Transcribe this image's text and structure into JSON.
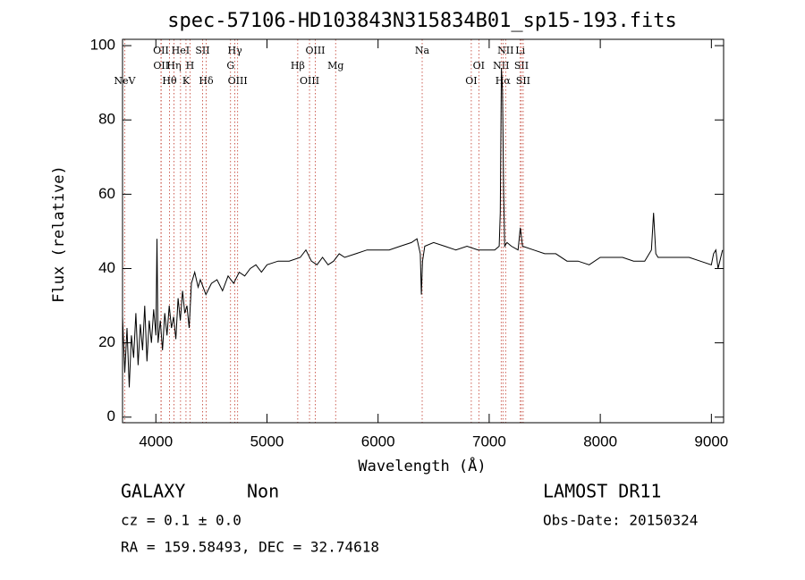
{
  "chart_data": {
    "type": "line",
    "title": "spec-57106-HD103843N315834B01_sp15-193.fits",
    "x_label": "Wavelength (Å)",
    "y_label": "Flux (relative)",
    "x": [
      3700,
      3720,
      3740,
      3760,
      3780,
      3800,
      3820,
      3840,
      3860,
      3880,
      3900,
      3920,
      3940,
      3960,
      3980,
      4000,
      4010,
      4020,
      4040,
      4060,
      4080,
      4100,
      4120,
      4140,
      4160,
      4180,
      4200,
      4220,
      4240,
      4260,
      4280,
      4300,
      4320,
      4350,
      4380,
      4400,
      4450,
      4500,
      4550,
      4600,
      4650,
      4700,
      4750,
      4800,
      4850,
      4900,
      4950,
      5000,
      5100,
      5200,
      5300,
      5350,
      5400,
      5450,
      5500,
      5550,
      5600,
      5650,
      5700,
      5800,
      5900,
      6000,
      6100,
      6200,
      6300,
      6350,
      6380,
      6390,
      6400,
      6420,
      6500,
      6600,
      6700,
      6800,
      6900,
      7000,
      7050,
      7090,
      7100,
      7110,
      7120,
      7130,
      7140,
      7160,
      7200,
      7260,
      7280,
      7300,
      7400,
      7500,
      7600,
      7700,
      7800,
      7900,
      8000,
      8100,
      8200,
      8300,
      8400,
      8460,
      8480,
      8500,
      8520,
      8600,
      8700,
      8800,
      8900,
      9000,
      9020,
      9040,
      9060,
      9100
    ],
    "values": [
      27,
      12,
      24,
      8,
      22,
      16,
      28,
      14,
      25,
      18,
      30,
      15,
      26,
      20,
      29,
      22,
      48,
      20,
      26,
      18,
      28,
      22,
      30,
      24,
      27,
      21,
      32,
      26,
      34,
      28,
      30,
      24,
      36,
      39,
      35,
      37,
      33,
      36,
      37,
      34,
      38,
      36,
      39,
      38,
      40,
      41,
      39,
      41,
      42,
      42,
      43,
      45,
      42,
      41,
      43,
      41,
      42,
      44,
      43,
      44,
      45,
      45,
      45,
      46,
      47,
      48,
      44,
      33,
      42,
      46,
      47,
      46,
      45,
      46,
      45,
      45,
      45,
      46,
      55,
      94,
      88,
      60,
      46,
      47,
      46,
      45,
      51,
      46,
      45,
      44,
      44,
      42,
      42,
      41,
      43,
      43,
      43,
      42,
      42,
      45,
      55,
      44,
      43,
      43,
      43,
      43,
      42,
      41,
      44,
      45,
      40,
      45
    ],
    "color": "#000000",
    "xlim": [
      3700,
      9110
    ],
    "ylim": [
      -1.5,
      101.7
    ],
    "xticks": [
      4000,
      5000,
      6000,
      7000,
      8000,
      9000
    ],
    "yticks": [
      0,
      20,
      40,
      60,
      80,
      100
    ],
    "lines": [
      {
        "label": "NeV",
        "wavelength": 3719,
        "row": 3
      },
      {
        "label": "OII",
        "wavelength": 4046,
        "row": 1
      },
      {
        "label": "OII",
        "wavelength": 4048,
        "row": 2
      },
      {
        "label": "Hθ",
        "wavelength": 4123,
        "row": 3
      },
      {
        "label": "Hη",
        "wavelength": 4163,
        "row": 2
      },
      {
        "label": "HeI",
        "wavelength": 4222,
        "row": 1
      },
      {
        "label": "K",
        "wavelength": 4271,
        "row": 3
      },
      {
        "label": "H",
        "wavelength": 4307,
        "row": 2
      },
      {
        "label": "SII",
        "wavelength": 4420,
        "row": 1
      },
      {
        "label": "Hδ",
        "wavelength": 4453,
        "row": 3
      },
      {
        "label": "G",
        "wavelength": 4672,
        "row": 2
      },
      {
        "label": "Hγ",
        "wavelength": 4711,
        "row": 1
      },
      {
        "label": "OIII",
        "wavelength": 4736,
        "row": 3
      },
      {
        "label": "Hβ",
        "wavelength": 5277,
        "row": 2
      },
      {
        "label": "OIII",
        "wavelength": 5383,
        "row": 3
      },
      {
        "label": "OIII",
        "wavelength": 5435,
        "row": 1
      },
      {
        "label": "Mg",
        "wavelength": 5618,
        "row": 2
      },
      {
        "label": "Na",
        "wavelength": 6397,
        "row": 1
      },
      {
        "label": "OI",
        "wavelength": 6839,
        "row": 3
      },
      {
        "label": "OI",
        "wavelength": 6907,
        "row": 2
      },
      {
        "label": "NII",
        "wavelength": 7108,
        "row": 2
      },
      {
        "label": "Hα",
        "wavelength": 7124,
        "row": 3
      },
      {
        "label": "NII",
        "wavelength": 7148,
        "row": 1
      },
      {
        "label": "Li",
        "wavelength": 7280,
        "row": 1
      },
      {
        "label": "SII",
        "wavelength": 7290,
        "row": 2
      },
      {
        "label": "SII",
        "wavelength": 7306,
        "row": 3
      }
    ],
    "object_class": "GALAXY",
    "subclass": "Non",
    "survey": "LAMOST DR11",
    "redshift_text": "cz = 0.1 ± 0.0",
    "obs_date": "Obs-Date: 20150324",
    "coords": "RA = 159.58493, DEC =  32.74618"
  }
}
